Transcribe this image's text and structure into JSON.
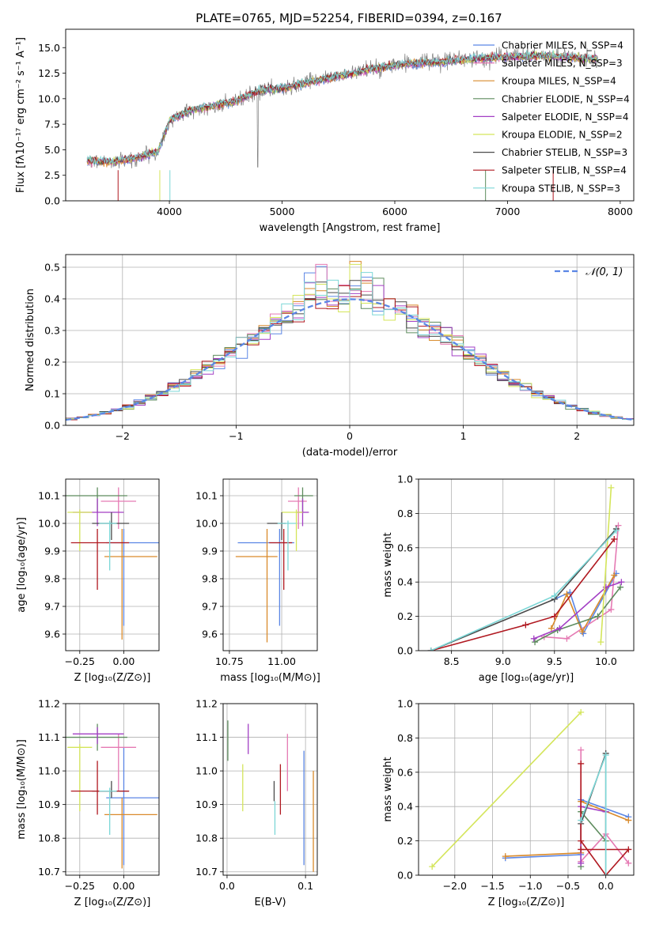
{
  "colors": {
    "c_miles": "#5b86e5",
    "s_miles": "#e57ab3",
    "k_miles": "#d98a2b",
    "c_elodie": "#5e8c5e",
    "s_elodie": "#a33fc4",
    "k_elodie": "#d4e55a",
    "c_stelib": "#4a4a4a",
    "s_stelib": "#b01820",
    "k_stelib": "#7cd7d7",
    "normal": "#5b86e5",
    "grid": "#b0b0b0"
  },
  "chart_data": [
    {
      "id": "spectrum",
      "type": "line",
      "title": "PLATE=0765, MJD=52254, FIBERID=0394, z=0.167",
      "xlabel": "wavelength [Angstrom, rest frame]",
      "ylabel": "Flux [fλ10⁻¹⁷ erg cm⁻² s⁻¹ A⁻¹]",
      "xlim": [
        3080,
        8120
      ],
      "ylim": [
        0,
        16.8
      ],
      "xticks": [
        "4000",
        "5000",
        "6000",
        "7000",
        "8000"
      ],
      "yticks": [
        "0.0",
        "2.5",
        "5.0",
        "7.5",
        "10.0",
        "12.5",
        "15.0"
      ],
      "legend_position": "right",
      "series": [
        {
          "name": "Chabrier MILES, N_SSP=4",
          "color": "#5b86e5"
        },
        {
          "name": "Salpeter MILES, N_SSP=3",
          "color": "#e57ab3"
        },
        {
          "name": "Kroupa MILES, N_SSP=4",
          "color": "#d98a2b"
        },
        {
          "name": "Chabrier ELODIE, N_SSP=4",
          "color": "#5e8c5e"
        },
        {
          "name": "Salpeter ELODIE, N_SSP=4",
          "color": "#a33fc4"
        },
        {
          "name": "Kroupa ELODIE, N_SSP=2",
          "color": "#d4e55a"
        },
        {
          "name": "Chabrier STELIB, N_SSP=3",
          "color": "#4a4a4a"
        },
        {
          "name": "Salpeter STELIB, N_SSP=4",
          "color": "#b01820"
        },
        {
          "name": "Kroupa STELIB, N_SSP=3",
          "color": "#7cd7d7"
        }
      ],
      "continuum": {
        "x": [
          3270,
          3500,
          3700,
          3900,
          4000,
          4200,
          4400,
          4600,
          4800,
          5000,
          5200,
          5500,
          5800,
          6100,
          6400,
          6700,
          7000,
          7300,
          7600,
          7800
        ],
        "y": [
          3.9,
          3.8,
          4.2,
          4.8,
          7.9,
          8.9,
          9.3,
          9.8,
          10.8,
          11.0,
          11.5,
          12.2,
          12.9,
          13.4,
          13.6,
          13.9,
          14.1,
          14.2,
          14.0,
          13.9
        ]
      }
    },
    {
      "id": "residuals",
      "type": "histogram",
      "xlabel": "(data-model)/error",
      "ylabel": "Normed distribution",
      "xlim": [
        -2.5,
        2.5
      ],
      "ylim": [
        0,
        0.54
      ],
      "xticks": [
        "−2",
        "−1",
        "0",
        "1",
        "2"
      ],
      "yticks": [
        "0.0",
        "0.1",
        "0.2",
        "0.3",
        "0.4",
        "0.5"
      ],
      "legend": "𝒩(0, 1)",
      "legend_position": "top-right",
      "bin_width": 0.1,
      "bin_start": -2.5
    },
    {
      "id": "age_vs_Z",
      "type": "errorbar",
      "xlabel": "Z [log₁₀(Z/Z⊙)]",
      "ylabel": "age  [log₁₀(age/yr)]",
      "xlim": [
        -0.33,
        0.2
      ],
      "ylim": [
        9.54,
        10.16
      ],
      "xticks": [
        "−0.25",
        "0.00"
      ],
      "yticks": [
        "9.6",
        "9.7",
        "9.8",
        "9.9",
        "10.0",
        "10.1"
      ],
      "points": [
        {
          "color": "#5b86e5",
          "x": 0.0,
          "xerr": [
            0.1,
            0.3
          ],
          "y": 9.93,
          "yerr": [
            0.3,
            0.05
          ]
        },
        {
          "color": "#e57ab3",
          "x": -0.03,
          "xerr": [
            0.1,
            0.1
          ],
          "y": 10.08,
          "yerr": [
            0.1,
            0.05
          ]
        },
        {
          "color": "#d98a2b",
          "x": -0.01,
          "xerr": [
            0.1,
            0.2
          ],
          "y": 9.88,
          "yerr": [
            0.3,
            0.1
          ]
        },
        {
          "color": "#5e8c5e",
          "x": -0.15,
          "xerr": [
            0.18,
            0.17
          ],
          "y": 10.1,
          "yerr": [
            0.06,
            0.03
          ]
        },
        {
          "color": "#a33fc4",
          "x": -0.15,
          "xerr": [
            0.14,
            0.15
          ],
          "y": 10.04,
          "yerr": [
            0.05,
            0.05
          ]
        },
        {
          "color": "#d4e55a",
          "x": -0.25,
          "xerr": [
            0.07,
            0.07
          ],
          "y": 10.04,
          "yerr": [
            0.14,
            0.01
          ]
        },
        {
          "color": "#4a4a4a",
          "x": -0.07,
          "xerr": [
            0.11,
            0.1
          ],
          "y": 10.0,
          "yerr": [
            0.06,
            0.04
          ]
        },
        {
          "color": "#b01820",
          "x": -0.15,
          "xerr": [
            0.15,
            0.18
          ],
          "y": 9.93,
          "yerr": [
            0.17,
            0.05
          ]
        },
        {
          "color": "#7cd7d7",
          "x": -0.08,
          "xerr": [
            0.06,
            0.04
          ],
          "y": 10.0,
          "yerr": [
            0.17,
            0.01
          ]
        }
      ]
    },
    {
      "id": "age_vs_mass",
      "type": "errorbar",
      "xlabel": "mass [log₁₀(M/M⊙)]",
      "ylabel": "",
      "xlim": [
        10.72,
        11.17
      ],
      "ylim": [
        9.54,
        10.16
      ],
      "xticks": [
        "10.75",
        "11.00"
      ],
      "yticks": [
        "9.6",
        "9.7",
        "9.8",
        "9.9",
        "10.0",
        "10.1"
      ],
      "points": [
        {
          "color": "#5b86e5",
          "x": 10.99,
          "xerr": [
            0.2,
            0.07
          ],
          "y": 9.93,
          "yerr": [
            0.3,
            0.05
          ]
        },
        {
          "color": "#e57ab3",
          "x": 11.08,
          "xerr": [
            0.05,
            0.04
          ],
          "y": 10.08,
          "yerr": [
            0.1,
            0.05
          ]
        },
        {
          "color": "#d98a2b",
          "x": 10.93,
          "xerr": [
            0.15,
            0.05
          ],
          "y": 9.88,
          "yerr": [
            0.31,
            0.1
          ]
        },
        {
          "color": "#5e8c5e",
          "x": 11.1,
          "xerr": [
            0.04,
            0.05
          ],
          "y": 10.1,
          "yerr": [
            0.06,
            0.03
          ]
        },
        {
          "color": "#a33fc4",
          "x": 11.1,
          "xerr": [
            0.03,
            0.03
          ],
          "y": 10.04,
          "yerr": [
            0.05,
            0.05
          ]
        },
        {
          "color": "#d4e55a",
          "x": 11.07,
          "xerr": [
            0.07,
            0.03
          ],
          "y": 10.04,
          "yerr": [
            0.14,
            0.01
          ]
        },
        {
          "color": "#4a4a4a",
          "x": 11.0,
          "xerr": [
            0.07,
            0.02
          ],
          "y": 10.0,
          "yerr": [
            0.06,
            0.04
          ]
        },
        {
          "color": "#b01820",
          "x": 11.01,
          "xerr": [
            0.07,
            0.04
          ],
          "y": 9.93,
          "yerr": [
            0.17,
            0.05
          ]
        },
        {
          "color": "#7cd7d7",
          "x": 11.03,
          "xerr": [
            0.05,
            0.04
          ],
          "y": 10.0,
          "yerr": [
            0.17,
            0.01
          ]
        }
      ]
    },
    {
      "id": "mass_weight_vs_age",
      "type": "line",
      "xlabel": "age  [log₁₀(age/yr)]",
      "ylabel": "mass weight",
      "xlim": [
        8.18,
        10.27
      ],
      "ylim": [
        0,
        1.0
      ],
      "xticks": [
        "8.5",
        "9.0",
        "9.5",
        "10.0"
      ],
      "yticks": [
        "0.0",
        "0.2",
        "0.4",
        "0.6",
        "0.8",
        "1.0"
      ],
      "series": [
        {
          "color": "#5b86e5",
          "x": [
            9.5,
            9.65,
            9.78,
            10.1
          ],
          "y": [
            0.3,
            0.34,
            0.1,
            0.45
          ]
        },
        {
          "color": "#e57ab3",
          "x": [
            9.4,
            9.62,
            10.05,
            10.12
          ],
          "y": [
            0.08,
            0.07,
            0.24,
            0.73
          ]
        },
        {
          "color": "#d98a2b",
          "x": [
            9.47,
            9.62,
            9.77,
            10.08
          ],
          "y": [
            0.13,
            0.33,
            0.11,
            0.44
          ]
        },
        {
          "color": "#5e8c5e",
          "x": [
            9.31,
            9.53,
            9.92,
            10.14
          ],
          "y": [
            0.05,
            0.12,
            0.2,
            0.37
          ]
        },
        {
          "color": "#a33fc4",
          "x": [
            9.3,
            9.55,
            10.0,
            10.15
          ],
          "y": [
            0.07,
            0.13,
            0.37,
            0.4
          ]
        },
        {
          "color": "#d4e55a",
          "x": [
            9.95,
            10.05
          ],
          "y": [
            0.05,
            0.95
          ]
        },
        {
          "color": "#4a4a4a",
          "x": [
            8.3,
            9.5,
            10.1
          ],
          "y": [
            0.0,
            0.3,
            0.71
          ]
        },
        {
          "color": "#b01820",
          "x": [
            8.3,
            9.22,
            9.5,
            10.08
          ],
          "y": [
            0.0,
            0.15,
            0.2,
            0.65
          ]
        },
        {
          "color": "#7cd7d7",
          "x": [
            8.3,
            9.5,
            10.1
          ],
          "y": [
            0.0,
            0.32,
            0.7
          ]
        }
      ]
    },
    {
      "id": "mass_vs_Z",
      "type": "errorbar",
      "xlabel": "Z [log₁₀(Z/Z⊙)]",
      "ylabel": "mass [log₁₀(M/M⊙)]",
      "xlim": [
        -0.33,
        0.2
      ],
      "ylim": [
        10.69,
        11.2
      ],
      "xticks": [
        "−0.25",
        "0.00"
      ],
      "yticks": [
        "10.7",
        "10.8",
        "10.9",
        "11.0",
        "11.1",
        "11.2"
      ],
      "points": [
        {
          "color": "#5b86e5",
          "x": 0.0,
          "xerr": [
            0.1,
            0.3
          ],
          "y": 10.92,
          "yerr": [
            0.2,
            0.15
          ]
        },
        {
          "color": "#e57ab3",
          "x": -0.03,
          "xerr": [
            0.1,
            0.1
          ],
          "y": 11.07,
          "yerr": [
            0.13,
            0.04
          ]
        },
        {
          "color": "#d98a2b",
          "x": -0.01,
          "xerr": [
            0.1,
            0.2
          ],
          "y": 10.87,
          "yerr": [
            0.16,
            0.05
          ]
        },
        {
          "color": "#5e8c5e",
          "x": -0.15,
          "xerr": [
            0.18,
            0.17
          ],
          "y": 11.1,
          "yerr": [
            0.04,
            0.04
          ]
        },
        {
          "color": "#a33fc4",
          "x": -0.15,
          "xerr": [
            0.14,
            0.15
          ],
          "y": 11.11,
          "yerr": [
            0.03,
            0.02
          ]
        },
        {
          "color": "#d4e55a",
          "x": -0.25,
          "xerr": [
            0.07,
            0.07
          ],
          "y": 11.07,
          "yerr": [
            0.19,
            0.01
          ]
        },
        {
          "color": "#4a4a4a",
          "x": -0.07,
          "xerr": [
            0.11,
            0.1
          ],
          "y": 10.94,
          "yerr": [
            0.02,
            0.03
          ]
        },
        {
          "color": "#b01820",
          "x": -0.15,
          "xerr": [
            0.15,
            0.18
          ],
          "y": 10.94,
          "yerr": [
            0.07,
            0.09
          ]
        },
        {
          "color": "#7cd7d7",
          "x": -0.08,
          "xerr": [
            0.06,
            0.04
          ],
          "y": 10.94,
          "yerr": [
            0.13,
            0.01
          ]
        }
      ]
    },
    {
      "id": "mass_vs_ebv",
      "type": "errorbar",
      "xlabel": "E(B-V)",
      "ylabel": "",
      "xlim": [
        -0.005,
        0.115
      ],
      "ylim": [
        10.69,
        11.2
      ],
      "xticks": [
        "0.0",
        "0.1"
      ],
      "yticks": [
        "10.7",
        "10.8",
        "10.9",
        "11.0",
        "11.1",
        "11.2"
      ],
      "points": [
        {
          "color": "#5b86e5",
          "x": 0.098,
          "y": 10.92,
          "yerr": [
            0.2,
            0.14
          ]
        },
        {
          "color": "#e57ab3",
          "x": 0.077,
          "y": 11.07,
          "yerr": [
            0.13,
            0.04
          ]
        },
        {
          "color": "#d98a2b",
          "x": 0.11,
          "y": 10.87,
          "yerr": [
            0.17,
            0.13
          ]
        },
        {
          "color": "#5e8c5e",
          "x": 0.001,
          "y": 11.1,
          "yerr": [
            0.07,
            0.05
          ]
        },
        {
          "color": "#a33fc4",
          "x": 0.027,
          "y": 11.1,
          "yerr": [
            0.05,
            0.04
          ]
        },
        {
          "color": "#d4e55a",
          "x": 0.02,
          "y": 10.95,
          "yerr": [
            0.07,
            0.07
          ]
        },
        {
          "color": "#4a4a4a",
          "x": 0.06,
          "y": 10.94,
          "yerr": [
            0.03,
            0.03
          ]
        },
        {
          "color": "#b01820",
          "x": 0.068,
          "y": 10.94,
          "yerr": [
            0.07,
            0.08
          ]
        },
        {
          "color": "#7cd7d7",
          "x": 0.061,
          "y": 10.87,
          "yerr": [
            0.06,
            0.04
          ]
        }
      ]
    },
    {
      "id": "mass_weight_vs_Z",
      "type": "line",
      "xlabel": "Z [log₁₀(Z/Z⊙)]",
      "ylabel": "mass weight",
      "xlim": [
        -2.48,
        0.37
      ],
      "ylim": [
        0,
        1.0
      ],
      "xticks": [
        "−2.0",
        "−1.5",
        "−1.0",
        "−0.5",
        "0.0"
      ],
      "yticks": [
        "0.0",
        "0.2",
        "0.4",
        "0.6",
        "0.8",
        "1.0"
      ],
      "series": [
        {
          "color": "#5b86e5",
          "x": [
            -1.33,
            -0.33,
            -0.33,
            0.3
          ],
          "y": [
            0.1,
            0.12,
            0.44,
            0.34
          ]
        },
        {
          "color": "#e57ab3",
          "x": [
            -0.33,
            -0.33,
            0.0,
            0.3
          ],
          "y": [
            0.73,
            0.08,
            0.24,
            0.07
          ]
        },
        {
          "color": "#d98a2b",
          "x": [
            -1.33,
            -0.33,
            -0.33,
            0.3
          ],
          "y": [
            0.11,
            0.13,
            0.43,
            0.32
          ]
        },
        {
          "color": "#5e8c5e",
          "x": [
            -0.33,
            -0.33,
            0.0,
            0.0
          ],
          "y": [
            0.05,
            0.37,
            0.2,
            0.37
          ]
        },
        {
          "color": "#a33fc4",
          "x": [
            -0.33,
            -0.33,
            0.0
          ],
          "y": [
            0.07,
            0.4,
            0.37
          ]
        },
        {
          "color": "#d4e55a",
          "x": [
            -2.3,
            -0.33
          ],
          "y": [
            0.05,
            0.95
          ]
        },
        {
          "color": "#4a4a4a",
          "x": [
            -0.33,
            0.0,
            0.0
          ],
          "y": [
            0.3,
            0.71,
            0.0
          ]
        },
        {
          "color": "#b01820",
          "x": [
            -0.33,
            -0.33,
            0.0,
            0.3,
            -0.33
          ],
          "y": [
            0.65,
            0.2,
            0.0,
            0.15,
            0.15
          ]
        },
        {
          "color": "#7cd7d7",
          "x": [
            -0.33,
            0.0,
            0.0
          ],
          "y": [
            0.32,
            0.7,
            0.0
          ]
        }
      ]
    }
  ]
}
